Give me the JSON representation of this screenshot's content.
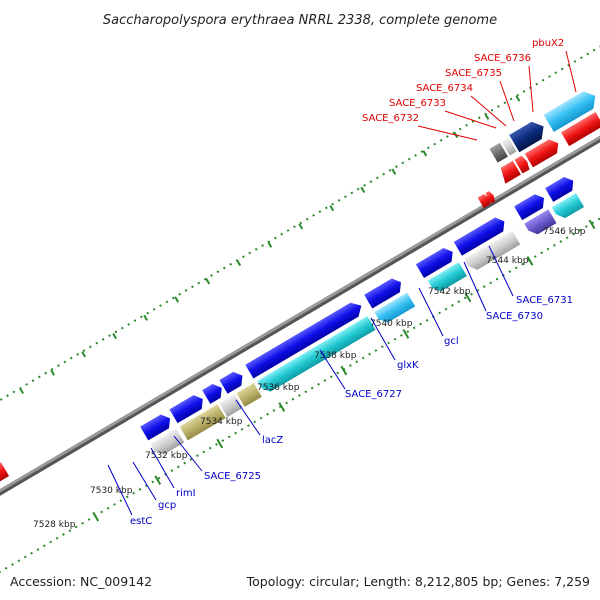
{
  "title": "Saccharopolyspora erythraea NRRL 2338, complete genome",
  "footer": {
    "accession": "Accession: NC_009142",
    "topology": "Topology: circular; Length: 8,212,805 bp; Genes: 7,259"
  },
  "ticks": [
    "7528 kbp",
    "7530 kbp",
    "7532 kbp",
    "7534 kbp",
    "7536 kbp",
    "7538 kbp",
    "7540 kbp",
    "7542 kbp",
    "7544 kbp",
    "7546 kbp"
  ],
  "lower_labels": [
    "estC",
    "gcp",
    "rimI",
    "SACE_6725",
    "lacZ",
    "SACE_6727",
    "glxK",
    "gcl",
    "SACE_6730",
    "SACE_6731"
  ],
  "upper_labels": [
    "SACE_6732",
    "SACE_6733",
    "SACE_6734",
    "SACE_6735",
    "SACE_6736",
    "pbuX2"
  ],
  "colors": {
    "backbone": "#8c8c8c",
    "forward_gene": "#0a0ae0",
    "reverse_gene": "#ee1010",
    "cds": "#1cc8d0",
    "gene_gray": "#c8c8c8",
    "gene_olive": "#bcb26c",
    "gene_purple": "#6a5acd",
    "gene_navy": "#0b2a7a",
    "gene_dark": "#6e6e6e",
    "dot_green": "#2a8a2a",
    "label_blue": "#0000c8",
    "label_red": "#e00000"
  }
}
